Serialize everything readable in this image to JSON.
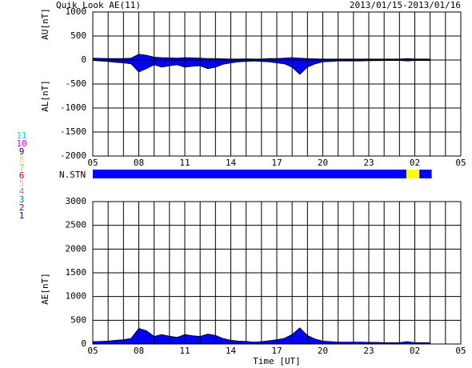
{
  "chart_data": [
    {
      "type": "area",
      "title": "Quik Look AE(11)",
      "subtitle": "2013/01/15-2013/01/16",
      "ylabel": "AU[nT]",
      "ylabel2": "AL[nT]",
      "x": [
        5,
        5.5,
        6,
        6.5,
        7,
        7.5,
        8,
        8.5,
        9,
        9.5,
        10,
        10.5,
        11,
        11.5,
        12,
        12.5,
        13,
        13.5,
        14,
        14.5,
        15,
        15.5,
        16,
        16.5,
        17,
        17.5,
        18,
        18.5,
        19,
        19.5,
        20,
        20.5,
        21,
        21.5,
        22,
        22.5,
        23,
        23.5,
        24,
        24.5,
        25,
        25.5,
        26,
        26.5,
        27
      ],
      "series": [
        {
          "name": "AU",
          "color": "#0000ff",
          "values": [
            40,
            35,
            30,
            30,
            30,
            40,
            120,
            100,
            60,
            50,
            45,
            40,
            50,
            45,
            40,
            30,
            30,
            25,
            20,
            20,
            25,
            20,
            20,
            30,
            30,
            40,
            50,
            40,
            30,
            25,
            20,
            20,
            20,
            20,
            20,
            20,
            20,
            20,
            20,
            20,
            20,
            30,
            20,
            20,
            20
          ]
        },
        {
          "name": "AL",
          "color": "#0000ff",
          "values": [
            -10,
            -20,
            -30,
            -50,
            -60,
            -80,
            -250,
            -180,
            -100,
            -150,
            -120,
            -100,
            -150,
            -130,
            -120,
            -180,
            -150,
            -90,
            -60,
            -40,
            -30,
            -20,
            -30,
            -40,
            -60,
            -80,
            -150,
            -300,
            -150,
            -80,
            -40,
            -30,
            -20,
            -20,
            -20,
            -20,
            -15,
            -15,
            -10,
            -10,
            -10,
            -20,
            -10,
            -10,
            -10
          ]
        }
      ],
      "xlim": [
        5,
        29
      ],
      "xticks": [
        {
          "value": 5,
          "label": "05"
        },
        {
          "value": 8,
          "label": "08"
        },
        11,
        14,
        17,
        20,
        23,
        {
          "value": 26,
          "label": "02"
        },
        {
          "value": 29,
          "label": "05"
        }
      ],
      "xminorticks": [
        6,
        7,
        9,
        10,
        12,
        13,
        15,
        16,
        18,
        19,
        21,
        22,
        24,
        25,
        27,
        28
      ],
      "ylim": [
        -2000,
        1000
      ],
      "yticks": [
        1000,
        500,
        0,
        -500,
        -1000,
        -1500,
        -2000
      ],
      "grid": true
    },
    {
      "type": "area",
      "ylabel": "AE[nT]",
      "xlabel": "Time [UT]",
      "x": [
        5,
        5.5,
        6,
        6.5,
        7,
        7.5,
        8,
        8.5,
        9,
        9.5,
        10,
        10.5,
        11,
        11.5,
        12,
        12.5,
        13,
        13.5,
        14,
        14.5,
        15,
        15.5,
        16,
        16.5,
        17,
        17.5,
        18,
        18.5,
        19,
        19.5,
        20,
        20.5,
        21,
        21.5,
        22,
        22.5,
        23,
        23.5,
        24,
        24.5,
        25,
        25.5,
        26,
        26.5,
        27
      ],
      "series": [
        {
          "name": "AE",
          "color": "#0000ff",
          "values": [
            50,
            55,
            60,
            80,
            90,
            120,
            330,
            280,
            160,
            200,
            165,
            140,
            200,
            175,
            160,
            210,
            180,
            115,
            80,
            60,
            55,
            40,
            50,
            70,
            90,
            120,
            200,
            340,
            180,
            105,
            60,
            50,
            40,
            40,
            40,
            40,
            35,
            35,
            30,
            30,
            30,
            50,
            30,
            30,
            30
          ]
        }
      ],
      "xlim": [
        5,
        29
      ],
      "xticks": [
        {
          "value": 5,
          "label": "05"
        },
        {
          "value": 8,
          "label": "08"
        },
        11,
        14,
        17,
        20,
        23,
        {
          "value": 26,
          "label": "02"
        },
        {
          "value": 29,
          "label": "05"
        }
      ],
      "xminorticks": [
        6,
        7,
        9,
        10,
        12,
        13,
        15,
        16,
        18,
        19,
        21,
        22,
        24,
        25,
        27,
        28
      ],
      "ylim": [
        0,
        3000
      ],
      "yticks": [
        0,
        500,
        1000,
        1500,
        2000,
        2500,
        3000
      ],
      "grid": true
    }
  ],
  "station_count": {
    "label": "N.STN",
    "segments": [
      {
        "start": 5,
        "end": 25.45,
        "color": "#0000ff"
      },
      {
        "start": 25.45,
        "end": 26.3,
        "color": "#ffff00"
      },
      {
        "start": 26.3,
        "end": 27.1,
        "color": "#0000ff"
      }
    ]
  },
  "station_legend": [
    {
      "label": "11",
      "color": "#00d8d8"
    },
    {
      "label": "10",
      "color": "#e000e0"
    },
    {
      "label": "9",
      "color": "#0000c0"
    },
    {
      "label": "8",
      "color": "#e8e060"
    },
    {
      "label": "7",
      "color": "#80d080"
    },
    {
      "label": "6",
      "color": "#e00000"
    },
    {
      "label": "5",
      "color": "#c0c0c0"
    },
    {
      "label": "4",
      "color": "#909090"
    },
    {
      "label": "3",
      "color": "#008080"
    },
    {
      "label": "2",
      "color": "#800080"
    },
    {
      "label": "1",
      "color": "#0000e0"
    }
  ]
}
